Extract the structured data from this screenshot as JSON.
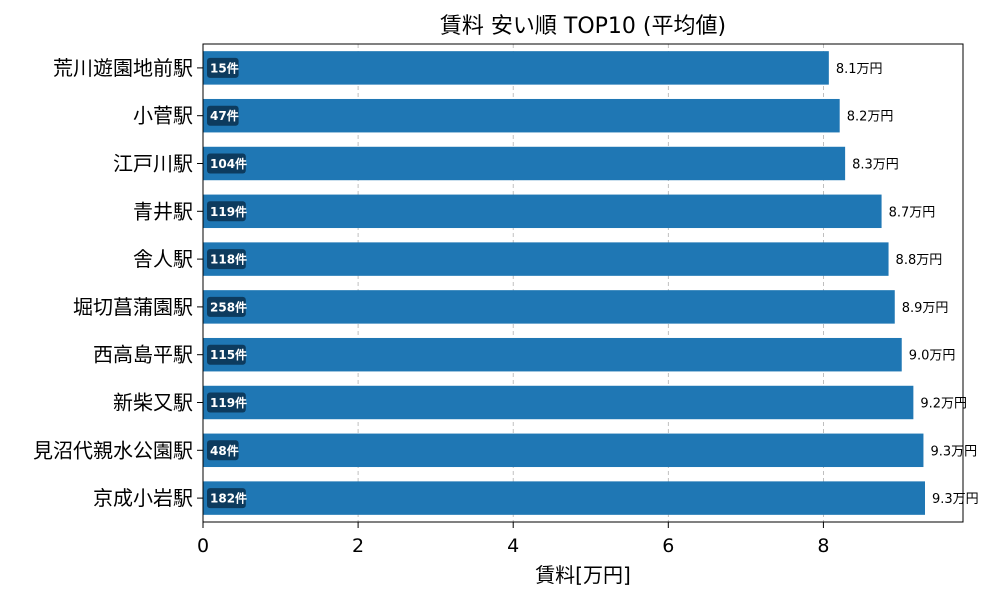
{
  "chart_data": {
    "type": "bar",
    "orientation": "horizontal",
    "title": "賃料 安い順 TOP10 (平均値)",
    "xlabel": "賃料[万円]",
    "ylabel": "",
    "xlim": [
      0,
      9.8
    ],
    "xticks": [
      "0",
      "2",
      "4",
      "6",
      "8"
    ],
    "grid": "x-dashed",
    "bar_color": "#1f77b4",
    "badge_color": "#0d3b5e",
    "categories": [
      "荒川遊園地前駅",
      "小菅駅",
      "江戸川駅",
      "青井駅",
      "舎人駅",
      "堀切菖蒲園駅",
      "西高島平駅",
      "新柴又駅",
      "見沼代親水公園駅",
      "京成小岩駅"
    ],
    "values": [
      8.07,
      8.21,
      8.28,
      8.75,
      8.84,
      8.92,
      9.01,
      9.16,
      9.29,
      9.31
    ],
    "value_labels": [
      "8.1万円",
      "8.2万円",
      "8.3万円",
      "8.7万円",
      "8.8万円",
      "8.9万円",
      "9.0万円",
      "9.2万円",
      "9.3万円",
      "9.3万円"
    ],
    "counts": [
      "15件",
      "47件",
      "104件",
      "119件",
      "118件",
      "258件",
      "115件",
      "119件",
      "48件",
      "182件"
    ]
  }
}
